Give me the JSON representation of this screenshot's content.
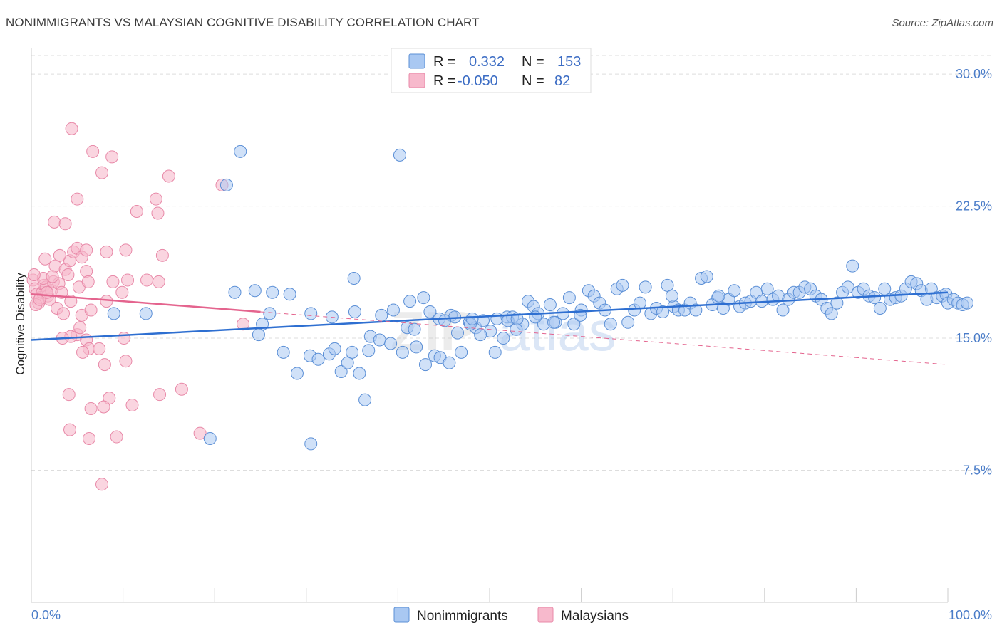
{
  "title": "NONIMMIGRANTS VS MALAYSIAN COGNITIVE DISABILITY CORRELATION CHART",
  "source": "Source: ZipAtlas.com",
  "watermark": {
    "zip": "ZIP",
    "atlas": "atlas"
  },
  "colors": {
    "blue_fill": "#a9c8f2",
    "blue_stroke": "#5b8fd6",
    "blue_line": "#2e6fd1",
    "pink_fill": "#f7b9cc",
    "pink_stroke": "#e889a8",
    "pink_line": "#e4648e",
    "grid": "#dddddd",
    "tick_text": "#4a7cc8"
  },
  "legend_top": {
    "rows": [
      {
        "r_label": "R =",
        "r_value": "0.332",
        "n_label": "N =",
        "n_value": "153",
        "series": "Nonimmigrants"
      },
      {
        "r_label": "R =",
        "r_value": "-0.050",
        "n_label": "N =",
        "n_value": "82",
        "series": "Malaysians"
      }
    ]
  },
  "chart_data": {
    "type": "scatter",
    "title": "NONIMMIGRANTS VS MALAYSIAN COGNITIVE DISABILITY CORRELATION CHART",
    "xlabel": "",
    "ylabel": "Cognitive Disability",
    "xlim": [
      0,
      100
    ],
    "ylim": [
      0,
      31.5
    ],
    "x_ticks": [
      "0.0%",
      "100.0%"
    ],
    "y_ticks": [
      {
        "value": 7.5,
        "label": "7.5%"
      },
      {
        "value": 15.0,
        "label": "15.0%"
      },
      {
        "value": 22.5,
        "label": "22.5%"
      },
      {
        "value": 30.0,
        "label": "30.0%"
      }
    ],
    "grid": true,
    "legend_position": "top-center",
    "series": [
      {
        "name": "Nonimmigrants",
        "color": "#a9c8f2",
        "trend": {
          "x": [
            0,
            100
          ],
          "y": [
            14.9,
            17.6
          ]
        },
        "points": [
          [
            22.8,
            25.6
          ],
          [
            40.2,
            25.4
          ],
          [
            21.3,
            23.7
          ],
          [
            35.2,
            18.4
          ],
          [
            22.2,
            17.6
          ],
          [
            24.4,
            17.7
          ],
          [
            26.3,
            17.6
          ],
          [
            28.2,
            17.5
          ],
          [
            9.0,
            16.4
          ],
          [
            12.5,
            16.4
          ],
          [
            26.0,
            16.4
          ],
          [
            30.5,
            16.4
          ],
          [
            32.8,
            16.2
          ],
          [
            25.2,
            15.8
          ],
          [
            24.8,
            15.2
          ],
          [
            38.2,
            16.3
          ],
          [
            39.5,
            16.6
          ],
          [
            41.3,
            17.1
          ],
          [
            42.8,
            17.3
          ],
          [
            43.5,
            16.5
          ],
          [
            44.5,
            16.1
          ],
          [
            45.8,
            16.3
          ],
          [
            46.2,
            16.2
          ],
          [
            47.8,
            15.9
          ],
          [
            48.5,
            15.6
          ],
          [
            49.3,
            16.0
          ],
          [
            50.1,
            15.4
          ],
          [
            50.8,
            16.1
          ],
          [
            51.9,
            16.2
          ],
          [
            52.5,
            16.2
          ],
          [
            53.6,
            15.8
          ],
          [
            54.2,
            17.1
          ],
          [
            54.8,
            16.8
          ],
          [
            55.3,
            16.4
          ],
          [
            55.9,
            15.8
          ],
          [
            56.6,
            16.9
          ],
          [
            57.2,
            15.9
          ],
          [
            58.0,
            16.4
          ],
          [
            58.7,
            17.3
          ],
          [
            59.2,
            15.8
          ],
          [
            60.0,
            16.6
          ],
          [
            60.8,
            17.7
          ],
          [
            61.4,
            17.4
          ],
          [
            62.0,
            17.0
          ],
          [
            62.6,
            16.6
          ],
          [
            63.2,
            15.8
          ],
          [
            63.9,
            17.8
          ],
          [
            64.5,
            18.0
          ],
          [
            65.1,
            15.9
          ],
          [
            65.8,
            16.6
          ],
          [
            66.4,
            17.0
          ],
          [
            67.0,
            17.9
          ],
          [
            67.6,
            16.4
          ],
          [
            68.2,
            16.7
          ],
          [
            68.9,
            16.5
          ],
          [
            69.4,
            18.0
          ],
          [
            70.1,
            16.8
          ],
          [
            70.6,
            16.6
          ],
          [
            71.3,
            16.6
          ],
          [
            71.9,
            17.0
          ],
          [
            72.5,
            16.6
          ],
          [
            73.1,
            18.4
          ],
          [
            73.7,
            18.5
          ],
          [
            74.3,
            16.9
          ],
          [
            74.9,
            17.3
          ],
          [
            75.5,
            16.7
          ],
          [
            76.1,
            17.2
          ],
          [
            76.7,
            17.7
          ],
          [
            77.3,
            16.8
          ],
          [
            77.9,
            17.0
          ],
          [
            78.5,
            17.1
          ],
          [
            79.1,
            17.6
          ],
          [
            79.7,
            17.1
          ],
          [
            80.3,
            17.8
          ],
          [
            80.9,
            17.2
          ],
          [
            81.5,
            17.4
          ],
          [
            82.0,
            16.6
          ],
          [
            82.6,
            17.2
          ],
          [
            83.2,
            17.6
          ],
          [
            83.8,
            17.6
          ],
          [
            84.4,
            17.9
          ],
          [
            85.0,
            17.8
          ],
          [
            85.6,
            17.4
          ],
          [
            86.2,
            17.2
          ],
          [
            86.8,
            16.7
          ],
          [
            87.3,
            16.4
          ],
          [
            87.9,
            17.0
          ],
          [
            88.5,
            17.6
          ],
          [
            89.1,
            17.9
          ],
          [
            89.6,
            19.1
          ],
          [
            90.2,
            17.6
          ],
          [
            90.8,
            17.8
          ],
          [
            91.4,
            17.4
          ],
          [
            92.0,
            17.3
          ],
          [
            92.6,
            16.7
          ],
          [
            93.1,
            17.8
          ],
          [
            93.7,
            17.2
          ],
          [
            94.3,
            17.3
          ],
          [
            94.9,
            17.4
          ],
          [
            95.4,
            17.8
          ],
          [
            96.0,
            18.2
          ],
          [
            96.6,
            18.1
          ],
          [
            97.1,
            17.7
          ],
          [
            97.7,
            17.2
          ],
          [
            98.2,
            17.8
          ],
          [
            98.8,
            17.3
          ],
          [
            99.4,
            17.4
          ],
          [
            99.8,
            17.5
          ],
          [
            100.0,
            17.0
          ],
          [
            100.6,
            17.2
          ],
          [
            101.1,
            17.0
          ],
          [
            101.6,
            16.9
          ],
          [
            102.1,
            17.0
          ],
          [
            75.0,
            17.4
          ],
          [
            69.9,
            17.4
          ],
          [
            59.9,
            16.3
          ],
          [
            55.0,
            16.2
          ],
          [
            27.5,
            14.2
          ],
          [
            29.0,
            13.0
          ],
          [
            30.4,
            14.0
          ],
          [
            31.3,
            13.8
          ],
          [
            32.5,
            14.1
          ],
          [
            33.1,
            14.4
          ],
          [
            33.8,
            13.1
          ],
          [
            34.5,
            13.6
          ],
          [
            35.0,
            14.2
          ],
          [
            35.8,
            13.0
          ],
          [
            36.4,
            11.5
          ],
          [
            37.0,
            15.1
          ],
          [
            38.0,
            14.9
          ],
          [
            39.2,
            14.7
          ],
          [
            41.0,
            15.6
          ],
          [
            42.0,
            14.5
          ],
          [
            43.0,
            13.5
          ],
          [
            44.0,
            14.0
          ],
          [
            44.6,
            13.9
          ],
          [
            45.6,
            13.6
          ],
          [
            46.9,
            14.2
          ],
          [
            47.9,
            15.8
          ],
          [
            49.0,
            15.2
          ],
          [
            50.6,
            14.2
          ],
          [
            51.5,
            15.0
          ],
          [
            52.9,
            15.5
          ],
          [
            19.5,
            9.3
          ],
          [
            30.5,
            9.0
          ],
          [
            35.3,
            16.5
          ],
          [
            36.8,
            14.3
          ],
          [
            40.5,
            14.2
          ],
          [
            41.8,
            15.5
          ],
          [
            45.1,
            16.0
          ],
          [
            46.5,
            15.3
          ],
          [
            48.1,
            16.1
          ],
          [
            52.0,
            16.0
          ],
          [
            53.0,
            16.1
          ],
          [
            57.0,
            15.9
          ]
        ]
      },
      {
        "name": "Malaysians",
        "color": "#f7b9cc",
        "trend": {
          "x": [
            0,
            25
          ],
          "y": [
            17.5,
            16.5
          ],
          "dashed_extension": {
            "x": [
              25,
              100
            ],
            "y": [
              16.5,
              13.5
            ]
          }
        },
        "points": [
          [
            0.2,
            18.3
          ],
          [
            0.4,
            17.8
          ],
          [
            0.6,
            17.5
          ],
          [
            0.8,
            17.0
          ],
          [
            1.0,
            17.3
          ],
          [
            1.2,
            17.6
          ],
          [
            1.4,
            18.0
          ],
          [
            1.6,
            17.9
          ],
          [
            1.8,
            17.4
          ],
          [
            2.0,
            17.2
          ],
          [
            2.2,
            17.7
          ],
          [
            2.4,
            18.2
          ],
          [
            0.5,
            16.9
          ],
          [
            0.9,
            17.2
          ],
          [
            1.3,
            18.4
          ],
          [
            1.7,
            17.6
          ],
          [
            2.6,
            19.1
          ],
          [
            3.0,
            18.1
          ],
          [
            3.3,
            17.6
          ],
          [
            3.7,
            18.9
          ],
          [
            4.2,
            19.4
          ],
          [
            4.6,
            19.9
          ],
          [
            5.0,
            20.1
          ],
          [
            5.5,
            19.6
          ],
          [
            6.0,
            18.8
          ],
          [
            3.1,
            19.7
          ],
          [
            4.0,
            18.6
          ],
          [
            2.8,
            16.7
          ],
          [
            3.5,
            16.4
          ],
          [
            4.3,
            17.1
          ],
          [
            5.2,
            17.9
          ],
          [
            6.2,
            18.2
          ],
          [
            1.5,
            19.5
          ],
          [
            2.3,
            18.5
          ],
          [
            0.3,
            18.6
          ],
          [
            4.4,
            26.9
          ],
          [
            6.7,
            25.6
          ],
          [
            8.8,
            25.3
          ],
          [
            7.7,
            24.4
          ],
          [
            15.0,
            24.2
          ],
          [
            20.8,
            23.7
          ],
          [
            5.0,
            22.9
          ],
          [
            13.6,
            22.9
          ],
          [
            11.5,
            22.2
          ],
          [
            13.8,
            22.1
          ],
          [
            2.5,
            21.6
          ],
          [
            3.7,
            21.5
          ],
          [
            6.0,
            20.0
          ],
          [
            8.2,
            19.9
          ],
          [
            10.3,
            20.0
          ],
          [
            14.3,
            19.7
          ],
          [
            5.0,
            15.2
          ],
          [
            5.3,
            15.6
          ],
          [
            6.0,
            14.9
          ],
          [
            6.3,
            14.4
          ],
          [
            5.6,
            14.2
          ],
          [
            7.4,
            14.4
          ],
          [
            10.1,
            15.0
          ],
          [
            4.3,
            15.1
          ],
          [
            8.0,
            13.5
          ],
          [
            10.3,
            13.7
          ],
          [
            4.1,
            11.8
          ],
          [
            8.5,
            11.6
          ],
          [
            11.0,
            11.2
          ],
          [
            14.0,
            11.8
          ],
          [
            16.4,
            12.1
          ],
          [
            7.9,
            11.1
          ],
          [
            6.5,
            11.0
          ],
          [
            4.2,
            9.8
          ],
          [
            6.3,
            9.3
          ],
          [
            9.3,
            9.4
          ],
          [
            18.4,
            9.6
          ],
          [
            7.7,
            6.7
          ],
          [
            23.1,
            15.8
          ],
          [
            5.5,
            16.3
          ],
          [
            10.5,
            18.3
          ],
          [
            8.9,
            18.2
          ],
          [
            6.5,
            16.6
          ],
          [
            8.2,
            17.1
          ],
          [
            13.9,
            18.2
          ],
          [
            12.6,
            18.3
          ],
          [
            3.4,
            15.0
          ],
          [
            9.9,
            17.6
          ]
        ]
      }
    ]
  },
  "bottom_legend": [
    {
      "label": "Nonimmigrants",
      "series": "Nonimmigrants"
    },
    {
      "label": "Malaysians",
      "series": "Malaysians"
    }
  ]
}
